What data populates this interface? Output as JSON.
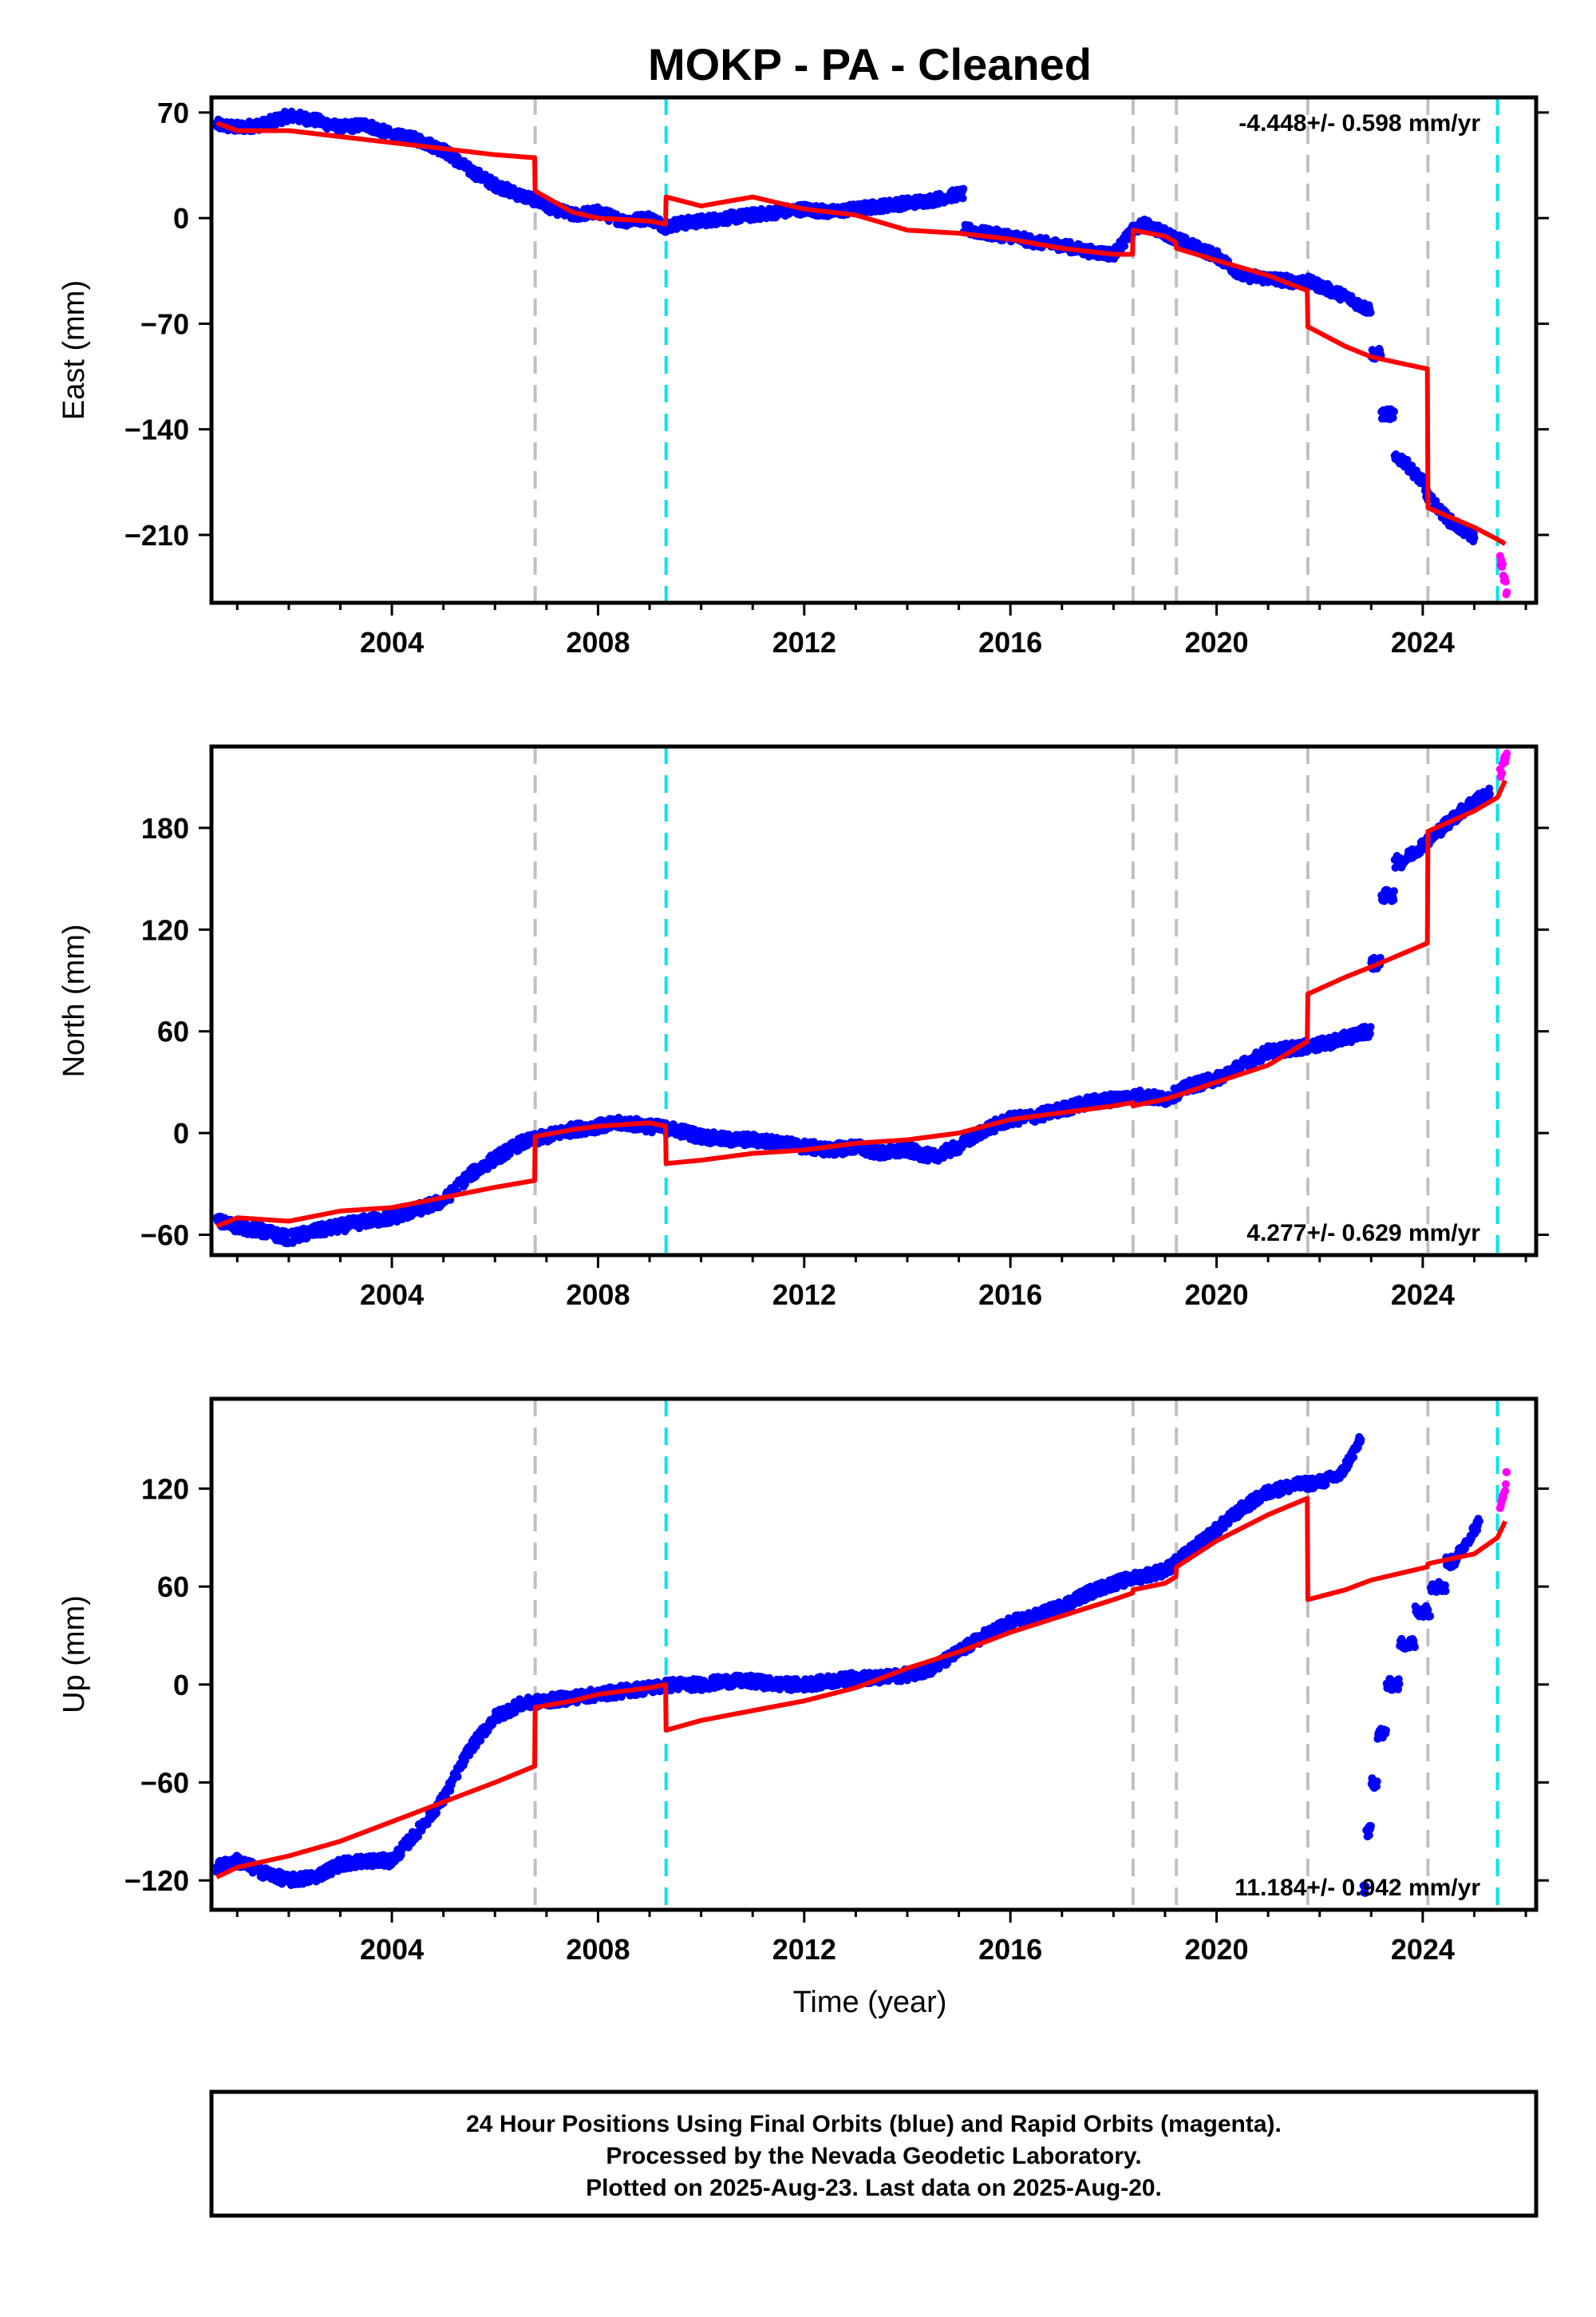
{
  "title": "MOKP  - PA - Cleaned",
  "xlabel": "Time (year)",
  "caption": {
    "line1": "24 Hour Positions Using Final Orbits (blue) and Rapid Orbits (magenta).",
    "line2": "Processed by the Nevada Geodetic Laboratory.",
    "line3": "Plotted on 2025-Aug-23. Last data on 2025-Aug-20."
  },
  "colors": {
    "final_orbits": "#0000ff",
    "rapid_orbits": "#ff00ff",
    "model": "#ff0000",
    "event_gray": "#c0c0c0",
    "event_cyan": "#00e5ee"
  },
  "chart_data": [
    {
      "type": "scatter",
      "panel": "east",
      "ylabel": "East (mm)",
      "xlim": [
        2000.5,
        2026.2
      ],
      "ylim": [
        -255,
        80
      ],
      "xticks": [
        2004,
        2008,
        2012,
        2016,
        2020,
        2024
      ],
      "yticks": [
        70,
        0,
        -70,
        -140,
        -210
      ],
      "rate": "-4.448+/- 0.598 mm/yr",
      "rate_position": "top-right",
      "gray_events": [
        2006.78,
        2018.38,
        2019.22,
        2021.77,
        2024.1
      ],
      "cyan_events": [
        2009.32,
        2025.45
      ],
      "series": [
        {
          "role": "final_orbits",
          "x": [
            2000.6,
            2001.0,
            2001.5,
            2002.0,
            2002.5,
            2003.0,
            2003.5,
            2004.0,
            2004.5,
            2005.0,
            2005.5,
            2006.0,
            2006.5,
            2006.78,
            2007.0,
            2007.5,
            2008.0,
            2008.5,
            2009.0,
            2009.32,
            2009.5,
            2010.0,
            2010.5,
            2011.0,
            2011.5,
            2012.0,
            2012.5,
            2013.0,
            2013.5,
            2014.0,
            2014.5,
            2015.0,
            2015.2,
            2015.5,
            2016.0,
            2016.5,
            2017.0,
            2017.5,
            2018.0,
            2018.38,
            2018.6,
            2019.0,
            2019.5,
            2020.0,
            2020.5,
            2021.0,
            2021.5,
            2021.77,
            2022.0,
            2022.5,
            2022.9,
            2023.1,
            2023.3,
            2023.6,
            2024.0,
            2024.1,
            2024.5,
            2025.0
          ],
          "y": [
            62,
            60,
            62,
            68,
            65,
            60,
            62,
            55,
            52,
            45,
            32,
            22,
            15,
            12,
            8,
            2,
            4,
            -2,
            0,
            -6,
            -4,
            -2,
            0,
            2,
            4,
            6,
            4,
            6,
            8,
            10,
            12,
            16,
            -8,
            -10,
            -12,
            -16,
            -18,
            -22,
            -24,
            -8,
            -4,
            -10,
            -18,
            -25,
            -38,
            -40,
            -42,
            -42,
            -45,
            -52,
            -60,
            -90,
            -130,
            -160,
            -175,
            -185,
            -200,
            -212
          ]
        },
        {
          "role": "rapid_orbits",
          "x": [
            2025.5,
            2025.55,
            2025.6,
            2025.63
          ],
          "y": [
            -225,
            -232,
            -242,
            -248
          ]
        },
        {
          "role": "model",
          "x": [
            2000.6,
            2001.0,
            2002.0,
            2003.0,
            2004.0,
            2005.0,
            2006.0,
            2006.77,
            2006.78,
            2007.5,
            2008.0,
            2009.0,
            2009.31,
            2009.32,
            2010.0,
            2011.0,
            2012.0,
            2013.0,
            2014.0,
            2015.0,
            2016.0,
            2017.0,
            2018.0,
            2018.37,
            2018.38,
            2019.0,
            2019.21,
            2019.22,
            2020.0,
            2021.0,
            2021.76,
            2021.77,
            2022.5,
            2023.0,
            2024.09,
            2024.1,
            2025.0,
            2025.45,
            2025.6
          ],
          "y": [
            63,
            58,
            58,
            54,
            50,
            46,
            42,
            40,
            18,
            4,
            0,
            -2,
            -4,
            14,
            8,
            14,
            6,
            2,
            -8,
            -10,
            -14,
            -20,
            -24,
            -24,
            -8,
            -12,
            -16,
            -20,
            -28,
            -38,
            -48,
            -72,
            -85,
            -92,
            -100,
            -192,
            -205,
            -213,
            -216
          ]
        }
      ]
    },
    {
      "type": "scatter",
      "panel": "north",
      "ylabel": "North (mm)",
      "xlim": [
        2000.5,
        2026.2
      ],
      "ylim": [
        -72,
        228
      ],
      "xticks": [
        2004,
        2008,
        2012,
        2016,
        2020,
        2024
      ],
      "yticks": [
        180,
        120,
        60,
        0,
        -60
      ],
      "rate": "4.277+/- 0.629 mm/yr",
      "rate_position": "bottom-right",
      "gray_events": [
        2006.78,
        2018.38,
        2019.22,
        2021.77,
        2024.1
      ],
      "cyan_events": [
        2009.32,
        2025.45
      ],
      "series": [
        {
          "role": "final_orbits",
          "x": [
            2000.6,
            2001.0,
            2001.5,
            2002.0,
            2002.5,
            2003.0,
            2003.5,
            2004.0,
            2004.5,
            2005.0,
            2005.5,
            2006.0,
            2006.5,
            2007.0,
            2007.5,
            2008.0,
            2008.5,
            2009.0,
            2009.5,
            2010.0,
            2010.5,
            2011.0,
            2011.5,
            2012.0,
            2012.5,
            2013.0,
            2013.5,
            2014.0,
            2014.5,
            2015.0,
            2015.5,
            2016.0,
            2016.5,
            2017.0,
            2017.5,
            2018.0,
            2018.5,
            2019.0,
            2019.5,
            2020.0,
            2020.5,
            2021.0,
            2021.5,
            2022.0,
            2022.5,
            2022.9,
            2023.1,
            2023.3,
            2023.6,
            2024.0,
            2024.3,
            2024.6,
            2025.0,
            2025.3
          ],
          "y": [
            -52,
            -55,
            -58,
            -62,
            -58,
            -55,
            -52,
            -50,
            -45,
            -40,
            -25,
            -15,
            -6,
            -2,
            2,
            4,
            6,
            4,
            2,
            -2,
            -4,
            -4,
            -6,
            -8,
            -10,
            -8,
            -12,
            -10,
            -14,
            -8,
            2,
            8,
            10,
            14,
            18,
            20,
            22,
            20,
            28,
            32,
            40,
            48,
            50,
            52,
            56,
            60,
            100,
            140,
            160,
            170,
            178,
            186,
            196,
            200
          ]
        },
        {
          "role": "rapid_orbits",
          "x": [
            2025.5,
            2025.55,
            2025.6,
            2025.63
          ],
          "y": [
            212,
            216,
            220,
            224
          ]
        },
        {
          "role": "model",
          "x": [
            2000.6,
            2001.0,
            2002.0,
            2003.0,
            2004.0,
            2005.0,
            2006.0,
            2006.77,
            2006.78,
            2007.5,
            2008.0,
            2009.0,
            2009.31,
            2009.32,
            2010.0,
            2011.0,
            2012.0,
            2013.0,
            2014.0,
            2015.0,
            2016.0,
            2017.0,
            2018.0,
            2018.37,
            2018.38,
            2019.0,
            2019.21,
            2019.22,
            2020.0,
            2021.0,
            2021.76,
            2021.77,
            2022.5,
            2023.0,
            2024.09,
            2024.1,
            2025.0,
            2025.45,
            2025.6
          ],
          "y": [
            -55,
            -50,
            -52,
            -46,
            -44,
            -38,
            -32,
            -28,
            -2,
            2,
            4,
            6,
            4,
            -18,
            -16,
            -12,
            -10,
            -6,
            -4,
            0,
            8,
            12,
            16,
            18,
            16,
            20,
            22,
            22,
            30,
            40,
            54,
            82,
            92,
            98,
            112,
            178,
            190,
            198,
            208
          ]
        }
      ]
    },
    {
      "type": "scatter",
      "panel": "up",
      "ylabel": "Up (mm)",
      "xlim": [
        2000.5,
        2026.2
      ],
      "ylim": [
        -138,
        175
      ],
      "xticks": [
        2004,
        2008,
        2012,
        2016,
        2020,
        2024
      ],
      "yticks": [
        120,
        60,
        0,
        -60,
        -120
      ],
      "rate": "11.184+/- 0.942 mm/yr",
      "rate_position": "bottom-right",
      "gray_events": [
        2006.78,
        2018.38,
        2019.22,
        2021.77,
        2024.1
      ],
      "cyan_events": [
        2009.32,
        2025.45
      ],
      "series": [
        {
          "role": "final_orbits",
          "x": [
            2000.6,
            2001.0,
            2001.5,
            2002.0,
            2002.5,
            2003.0,
            2003.5,
            2004.0,
            2004.5,
            2005.0,
            2005.5,
            2006.0,
            2006.5,
            2007.0,
            2007.5,
            2008.0,
            2008.5,
            2009.0,
            2009.5,
            2010.0,
            2010.5,
            2011.0,
            2011.5,
            2012.0,
            2012.5,
            2013.0,
            2013.5,
            2014.0,
            2014.5,
            2015.0,
            2015.5,
            2016.0,
            2016.5,
            2017.0,
            2017.5,
            2018.0,
            2018.5,
            2019.0,
            2019.5,
            2020.0,
            2020.5,
            2021.0,
            2021.5,
            2022.0,
            2022.4,
            2022.8
          ],
          "y": [
            -112,
            -108,
            -115,
            -120,
            -118,
            -110,
            -108,
            -108,
            -90,
            -70,
            -40,
            -20,
            -12,
            -10,
            -8,
            -6,
            -4,
            -2,
            0,
            0,
            2,
            2,
            0,
            0,
            2,
            4,
            4,
            6,
            10,
            20,
            30,
            38,
            42,
            48,
            56,
            62,
            66,
            70,
            82,
            95,
            108,
            118,
            122,
            124,
            128,
            150
          ]
        },
        {
          "role": "final_orbits_post_2022",
          "x": [
            2022.85,
            2022.95,
            2023.05,
            2023.2,
            2023.4,
            2023.7,
            2024.0,
            2024.3,
            2024.6,
            2024.9,
            2025.1
          ],
          "y": [
            -125,
            -90,
            -60,
            -30,
            0,
            25,
            45,
            60,
            75,
            90,
            100
          ]
        },
        {
          "role": "rapid_orbits",
          "x": [
            2025.5,
            2025.55,
            2025.6,
            2025.63
          ],
          "y": [
            105,
            115,
            122,
            130
          ]
        },
        {
          "role": "model",
          "x": [
            2000.6,
            2001.0,
            2002.0,
            2003.0,
            2004.0,
            2005.0,
            2006.0,
            2006.77,
            2006.78,
            2007.5,
            2008.0,
            2009.0,
            2009.31,
            2009.32,
            2010.0,
            2011.0,
            2012.0,
            2013.0,
            2014.0,
            2015.0,
            2016.0,
            2017.0,
            2018.0,
            2018.37,
            2018.38,
            2019.0,
            2019.21,
            2019.22,
            2020.0,
            2021.0,
            2021.76,
            2021.77,
            2022.5,
            2023.0,
            2024.09,
            2024.1,
            2025.0,
            2025.45,
            2025.6
          ],
          "y": [
            -118,
            -112,
            -105,
            -96,
            -84,
            -72,
            -60,
            -50,
            -14,
            -10,
            -6,
            -2,
            0,
            -28,
            -22,
            -16,
            -10,
            -2,
            10,
            20,
            32,
            42,
            52,
            56,
            58,
            62,
            66,
            72,
            88,
            104,
            114,
            52,
            58,
            64,
            72,
            74,
            80,
            90,
            100
          ]
        }
      ]
    }
  ]
}
